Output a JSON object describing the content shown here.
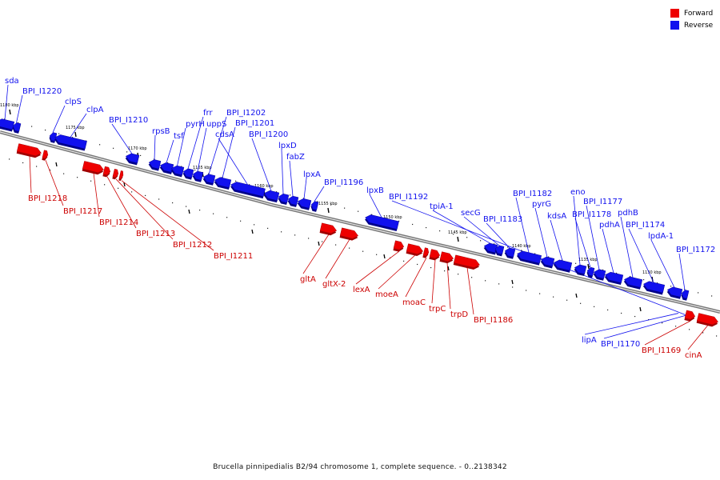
{
  "legend": {
    "forward_label": "Forward",
    "reverse_label": "Reverse",
    "forward_color": "#ee0000",
    "reverse_color": "#1111ee"
  },
  "footer": {
    "caption": "Brucella pinnipedialis B2/94 chromosome 1, complete sequence. - 0..2138342"
  },
  "ticks": [
    "1180 kbp",
    "1175 kbp",
    "1170 kbp",
    "1165 kbp",
    "1160 kbp",
    "1155 kbp",
    "1150 kbp",
    "1145 kbp",
    "1140 kbp",
    "1135 kbp",
    "1130 kbp"
  ],
  "genes_reverse": [
    "sda",
    "BPI_I1220",
    "clpS",
    "clpA",
    "BPI_I1210",
    "rpsB",
    "tsf",
    "pyrH",
    "frr",
    "uppS",
    "BPI_I1202",
    "BPI_I1201",
    "cdsA",
    "BPI_I1200",
    "lpxD",
    "fabZ",
    "lpxA",
    "BPI_I1196",
    "lpxB",
    "BPI_I1192",
    "tpiA-1",
    "secG",
    "BPI_I1183",
    "BPI_I1182",
    "pyrG",
    "kdsA",
    "eno",
    "BPI_I1178",
    "BPI_I1177",
    "pdhA",
    "pdhB",
    "BPI_I1174",
    "lpdA-1",
    "BPI_I1172",
    "lipA",
    "BPI_I1170"
  ],
  "genes_forward": [
    "BPI_I1218",
    "BPI_I1217",
    "BPI_I1214",
    "BPI_I1213",
    "BPI_I1212",
    "BPI_I1211",
    "gltA",
    "gltX-2",
    "lexA",
    "moeA",
    "moaC",
    "trpC",
    "trpD",
    "BPI_I1186",
    "BPI_I1169",
    "cinA"
  ]
}
